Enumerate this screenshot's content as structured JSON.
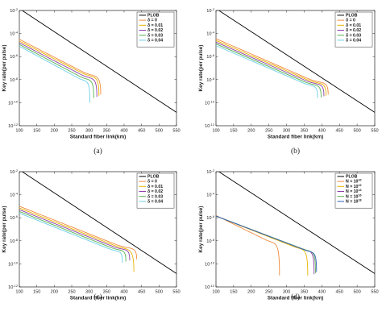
{
  "colors": {
    "plob": "#000000",
    "c1": "#f08a3c",
    "c2": "#e8b400",
    "c3": "#8f3fa8",
    "c4": "#57b050",
    "c5": "#6fd0e8",
    "c6": "#3060b8"
  },
  "chart_data": [
    {
      "type": "line",
      "caption": "(a)",
      "xlabel": "Standard fiber link(km)",
      "ylabel": "Key rate(per pulse)",
      "xlim": [
        100,
        550
      ],
      "ylim_exp": [
        -12,
        -2
      ],
      "yscale": "log",
      "xticks": [
        "100",
        "150",
        "200",
        "250",
        "300",
        "350",
        "400",
        "450",
        "500",
        "550"
      ],
      "yticks": [
        "10^{-12}",
        "10^{-10}",
        "10^{-8}",
        "10^{-6}",
        "10^{-4}",
        "10^{-2}"
      ],
      "legend_position": "top-right",
      "plob_label": "PLOB",
      "series": [
        {
          "name": "δ = 0",
          "color_key": "c1",
          "start": -4.5,
          "knee_x": 280,
          "knee_y": -7.3,
          "end_x": 333,
          "end_y": -9.3
        },
        {
          "name": "δ = 0.01",
          "color_key": "c2",
          "start": -4.65,
          "knee_x": 278,
          "knee_y": -7.4,
          "end_x": 328,
          "end_y": -9.4
        },
        {
          "name": "δ = 0.02",
          "color_key": "c3",
          "start": -4.8,
          "knee_x": 276,
          "knee_y": -7.55,
          "end_x": 322,
          "end_y": -9.5
        },
        {
          "name": "δ = 0.03",
          "color_key": "c4",
          "start": -4.95,
          "knee_x": 272,
          "knee_y": -7.7,
          "end_x": 313,
          "end_y": -9.6
        },
        {
          "name": "δ = 0.04",
          "color_key": "c5",
          "start": -5.1,
          "knee_x": 268,
          "knee_y": -7.85,
          "end_x": 302,
          "end_y": -10.0
        }
      ]
    },
    {
      "type": "line",
      "caption": "(b)",
      "xlabel": "Standard fiber link(km)",
      "ylabel": "Key rate(per pulse)",
      "xlim": [
        100,
        550
      ],
      "ylim_exp": [
        -12,
        -2
      ],
      "yscale": "log",
      "xticks": [
        "100",
        "150",
        "200",
        "250",
        "300",
        "350",
        "400",
        "450",
        "500",
        "550"
      ],
      "yticks": [
        "10^{-12}",
        "10^{-10}",
        "10^{-8}",
        "10^{-6}",
        "10^{-4}",
        "10^{-2}"
      ],
      "legend_position": "top-right",
      "plob_label": "PLOB",
      "series": [
        {
          "name": "δ = 0",
          "color_key": "c1",
          "start": -4.45,
          "knee_x": 360,
          "knee_y": -7.9,
          "end_x": 418,
          "end_y": -9.3
        },
        {
          "name": "δ = 0.01",
          "color_key": "c2",
          "start": -4.6,
          "knee_x": 358,
          "knee_y": -8.0,
          "end_x": 412,
          "end_y": -9.4
        },
        {
          "name": "δ = 0.02",
          "color_key": "c3",
          "start": -4.75,
          "knee_x": 356,
          "knee_y": -8.1,
          "end_x": 406,
          "end_y": -9.45
        },
        {
          "name": "δ = 0.03",
          "color_key": "c4",
          "start": -4.9,
          "knee_x": 352,
          "knee_y": -8.2,
          "end_x": 398,
          "end_y": -9.55
        },
        {
          "name": "δ = 0.04",
          "color_key": "c5",
          "start": -5.05,
          "knee_x": 348,
          "knee_y": -8.3,
          "end_x": 388,
          "end_y": -9.6
        }
      ]
    },
    {
      "type": "line",
      "caption": "(c)",
      "xlabel": "Standard fiber link(km)",
      "ylabel": "Key rate(per pulse)",
      "xlim": [
        100,
        550
      ],
      "ylim_exp": [
        -12,
        -2
      ],
      "yscale": "log",
      "xticks": [
        "100",
        "150",
        "200",
        "250",
        "300",
        "350",
        "400",
        "450",
        "500",
        "550"
      ],
      "yticks": [
        "10^{-12}",
        "10^{-10}",
        "10^{-8}",
        "10^{-6}",
        "10^{-4}",
        "10^{-2}"
      ],
      "legend_position": "top-right",
      "plob_label": "PLOB",
      "series": [
        {
          "name": "δ = 0",
          "color_key": "c1",
          "start": -5.0,
          "knee_x": 375,
          "knee_y": -8.3,
          "end_x": 436,
          "end_y": -9.6
        },
        {
          "name": "δ = 0.01",
          "color_key": "c2",
          "start": -5.15,
          "knee_x": 372,
          "knee_y": -8.4,
          "end_x": 428,
          "end_y": -10.7
        },
        {
          "name": "δ = 0.02",
          "color_key": "c3",
          "start": -5.3,
          "knee_x": 369,
          "knee_y": -8.5,
          "end_x": 416,
          "end_y": -9.7
        },
        {
          "name": "δ = 0.03",
          "color_key": "c4",
          "start": -5.45,
          "knee_x": 364,
          "knee_y": -8.6,
          "end_x": 405,
          "end_y": -9.8
        },
        {
          "name": "δ = 0.04",
          "color_key": "c5",
          "start": -5.6,
          "knee_x": 358,
          "knee_y": -8.7,
          "end_x": 395,
          "end_y": -9.9
        }
      ]
    },
    {
      "type": "line",
      "caption": "(d)",
      "xlabel": "Standard fiber link(km)",
      "ylabel": "Key rate(per pulse)",
      "xlim": [
        100,
        550
      ],
      "ylim_exp": [
        -12,
        -2
      ],
      "yscale": "log",
      "xticks": [
        "100",
        "150",
        "200",
        "250",
        "300",
        "350",
        "400",
        "450",
        "500",
        "550"
      ],
      "yticks": [
        "10^{-12}",
        "10^{-10}",
        "10^{-8}",
        "10^{-6}",
        "10^{-4}",
        "10^{-2}"
      ],
      "legend_position": "top-right",
      "plob_label": "PLOB",
      "series": [
        {
          "name": "N = 10^{10}",
          "color_key": "c1",
          "start": -5.8,
          "knee_x": 240,
          "knee_y": -7.9,
          "end_x": 280,
          "end_y": -11.0
        },
        {
          "name": "N = 10^{12}",
          "color_key": "c2",
          "start": -5.85,
          "knee_x": 320,
          "knee_y": -8.5,
          "end_x": 360,
          "end_y": -11.0
        },
        {
          "name": "N = 10^{14}",
          "color_key": "c3",
          "start": -5.85,
          "knee_x": 345,
          "knee_y": -8.7,
          "end_x": 378,
          "end_y": -10.9
        },
        {
          "name": "N = 10^{16}",
          "color_key": "c4",
          "start": -5.85,
          "knee_x": 350,
          "knee_y": -8.75,
          "end_x": 382,
          "end_y": -10.8
        },
        {
          "name": "N = 10^{18}",
          "color_key": "c6",
          "start": -5.85,
          "knee_x": 352,
          "knee_y": -8.8,
          "end_x": 385,
          "end_y": -10.7
        }
      ]
    }
  ]
}
